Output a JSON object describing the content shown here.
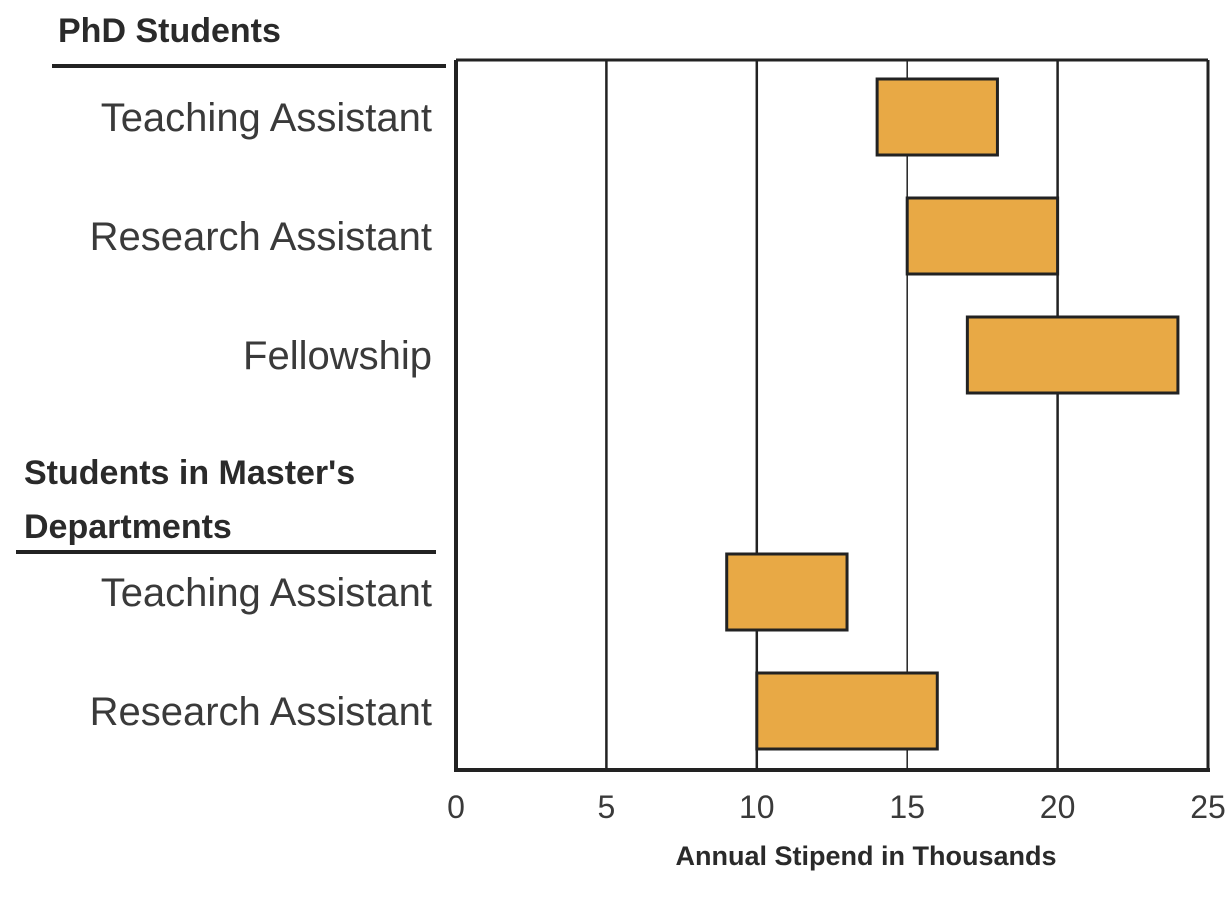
{
  "chart_data": {
    "type": "bar",
    "orientation": "horizontal",
    "subtype": "floating-range",
    "xlabel": "Annual Stipend in Thousands",
    "xlim": [
      0,
      25
    ],
    "xticks": [
      "0",
      "5",
      "10",
      "15",
      "20",
      "25"
    ],
    "xtick_values": [
      0,
      5,
      10,
      15,
      20,
      25
    ],
    "grid": true,
    "groups": [
      {
        "label": "PhD Students",
        "label_lines": [
          "PhD Students"
        ],
        "bars": [
          {
            "category": "Teaching Assistant",
            "low": 14,
            "high": 18
          },
          {
            "category": "Research Assistant",
            "low": 15,
            "high": 20
          },
          {
            "category": "Fellowship",
            "low": 17,
            "high": 24
          }
        ]
      },
      {
        "label": "Students in Master's Departments",
        "label_lines": [
          "Students in Master's",
          "Departments"
        ],
        "bars": [
          {
            "category": "Teaching Assistant",
            "low": 9,
            "high": 13
          },
          {
            "category": "Research Assistant",
            "low": 10,
            "high": 16
          }
        ]
      }
    ],
    "colors": {
      "bar_fill": "#E8A945",
      "bar_stroke": "#222222",
      "axis": "#222222",
      "grid": "#222222"
    }
  }
}
